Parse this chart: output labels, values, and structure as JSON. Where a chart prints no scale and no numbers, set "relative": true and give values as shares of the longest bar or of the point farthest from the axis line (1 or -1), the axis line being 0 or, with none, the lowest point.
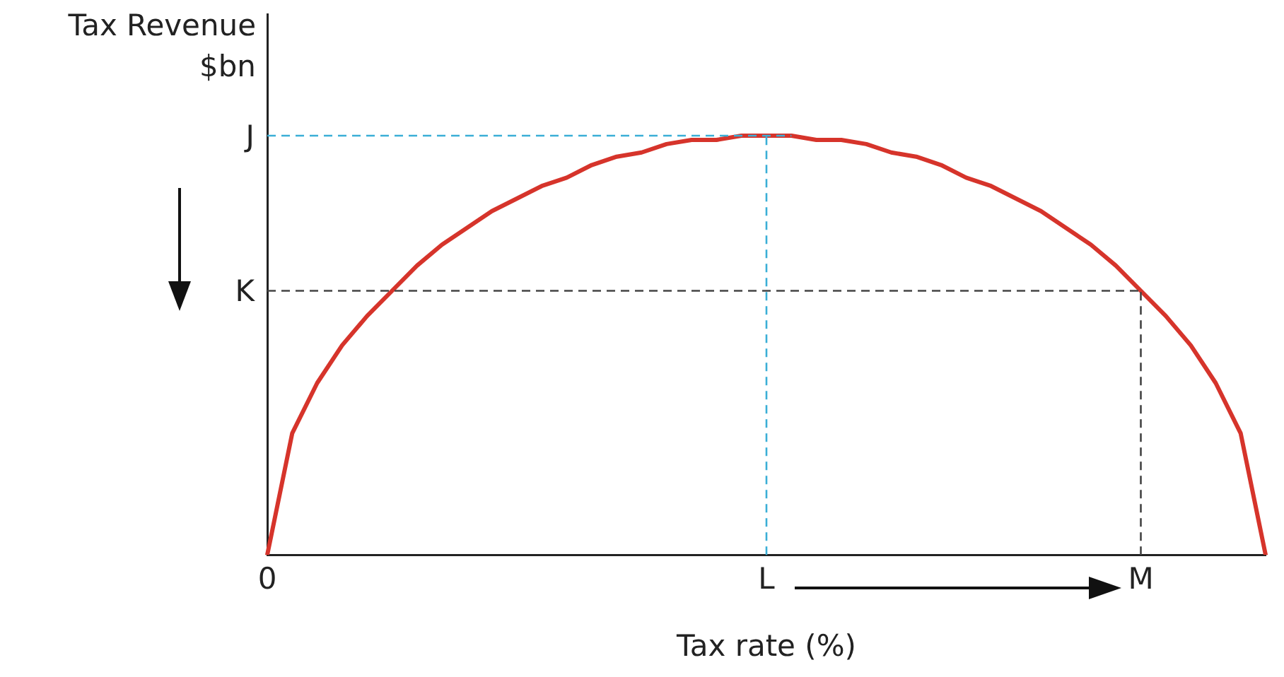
{
  "chart_data": {
    "type": "line",
    "relative": true,
    "xlabel": "Tax rate (%)",
    "ylabel": "Tax Revenue\n$bn",
    "categories": [
      "0",
      null,
      null,
      null,
      null,
      null,
      null,
      null,
      null,
      null,
      null,
      null,
      null,
      null,
      null,
      null,
      null,
      null,
      null,
      null,
      "L",
      null,
      null,
      null,
      null,
      null,
      null,
      null,
      null,
      null,
      null,
      null,
      null,
      null,
      null,
      "M",
      null,
      null,
      null,
      null,
      null
    ],
    "series": [
      {
        "color": "#d6342b",
        "values": [
          0,
          0.29,
          0.41,
          0.5,
          0.57,
          0.63,
          0.69,
          0.74,
          0.78,
          0.82,
          0.85,
          0.88,
          0.9,
          0.93,
          0.95,
          0.96,
          0.98,
          0.99,
          0.99,
          1,
          1,
          1,
          0.99,
          0.99,
          0.98,
          0.96,
          0.95,
          0.93,
          0.9,
          0.88,
          0.85,
          0.82,
          0.78,
          0.74,
          0.69,
          0.63,
          0.57,
          0.5,
          0.41,
          0.29,
          0
        ]
      }
    ],
    "ref_lines": [
      {
        "axis": "y",
        "value": 1,
        "label": "J",
        "color": "#3aaed6",
        "line_style": "dashed"
      },
      {
        "axis": "y",
        "value": 0.63,
        "label": "K",
        "color": "#444444",
        "line_style": "dashed"
      },
      {
        "axis": "x",
        "value": "L",
        "color": "#3aaed6",
        "line_style": "dashed"
      },
      {
        "axis": "x",
        "value": "M",
        "color": "#444444",
        "line_style": "dashed"
      }
    ],
    "grid": false,
    "legend": false,
    "marker": "none",
    "line_style": "solid"
  }
}
